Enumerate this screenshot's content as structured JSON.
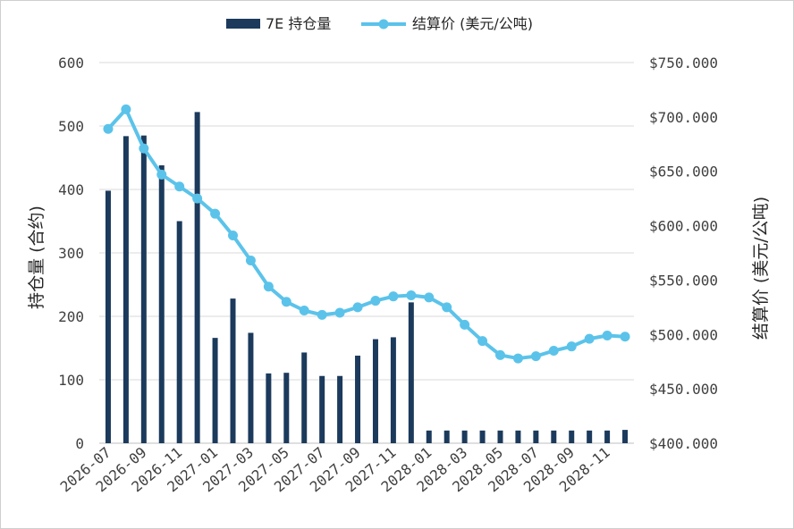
{
  "chart_data": {
    "type": "bar+line",
    "categories": [
      "2026-07",
      "2026-08",
      "2026-09",
      "2026-10",
      "2026-11",
      "2026-12",
      "2027-01",
      "2027-02",
      "2027-03",
      "2027-04",
      "2027-05",
      "2027-06",
      "2027-07",
      "2027-08",
      "2027-09",
      "2027-10",
      "2027-11",
      "2027-12",
      "2028-01",
      "2028-02",
      "2028-03",
      "2028-04",
      "2028-05",
      "2028-06",
      "2028-07",
      "2028-08",
      "2028-09",
      "2028-10",
      "2028-11",
      "2028-12"
    ],
    "x_tick_labels": [
      "2026-07",
      "2026-09",
      "2026-11",
      "2027-01",
      "2027-03",
      "2027-05",
      "2027-07",
      "2027-09",
      "2027-11",
      "2028-01",
      "2028-03",
      "2028-05",
      "2028-07",
      "2028-09",
      "2028-11"
    ],
    "series": [
      {
        "name": "7E 持仓量",
        "type": "bar",
        "axis": "left",
        "color": "#1b3a5c",
        "values": [
          398,
          484,
          485,
          438,
          350,
          522,
          166,
          228,
          174,
          110,
          111,
          143,
          106,
          106,
          138,
          164,
          167,
          222,
          20,
          20,
          20,
          20,
          20,
          20,
          20,
          20,
          20,
          20,
          20,
          21
        ]
      },
      {
        "name": "结算价 (美元/公吨)",
        "type": "line",
        "axis": "right",
        "color": "#5bc3ea",
        "values": [
          689,
          707,
          671,
          647,
          636,
          625,
          611,
          591,
          568,
          544,
          530,
          522,
          518,
          520,
          525,
          531,
          535,
          536,
          534,
          525,
          509,
          494,
          481,
          478,
          480,
          485,
          489,
          496,
          499,
          498
        ]
      }
    ],
    "y_left": {
      "label": "持仓量 (合约)",
      "min": 0,
      "max": 600,
      "ticks": [
        0,
        100,
        200,
        300,
        400,
        500,
        600
      ],
      "tick_labels": [
        "0",
        "100",
        "200",
        "300",
        "400",
        "500",
        "600"
      ]
    },
    "y_right": {
      "label": "结算价 (美元/公吨)",
      "min": 400,
      "max": 750,
      "ticks": [
        400,
        450,
        500,
        550,
        600,
        650,
        700,
        750
      ],
      "tick_labels": [
        "$400.000",
        "$450.000",
        "$500.000",
        "$550.000",
        "$600.000",
        "$650.000",
        "$700.000",
        "$750.000"
      ]
    },
    "grid": true,
    "legend": "top-center"
  }
}
